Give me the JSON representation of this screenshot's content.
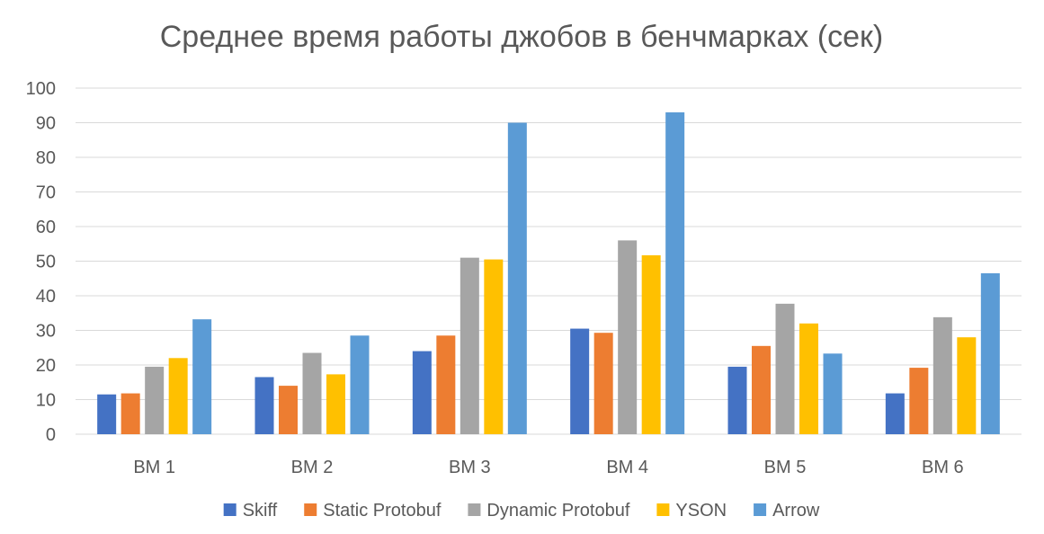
{
  "chart_data": {
    "type": "bar",
    "title": "Среднее время работы джобов в бенчмарках (сек)",
    "xlabel": "",
    "ylabel": "",
    "categories": [
      "BM 1",
      "BM 2",
      "BM 3",
      "BM 4",
      "BM 5",
      "BM 6"
    ],
    "ylim": [
      0,
      100
    ],
    "yticks": [
      0,
      10,
      20,
      30,
      40,
      50,
      60,
      70,
      80,
      90,
      100
    ],
    "grid": true,
    "legend_position": "bottom",
    "series": [
      {
        "name": "Skiff",
        "color": "#4472c4",
        "values": [
          11.5,
          16.5,
          24,
          30.5,
          19.5,
          11.8
        ]
      },
      {
        "name": "Static Protobuf",
        "color": "#ed7d31",
        "values": [
          11.8,
          14,
          28.5,
          29.3,
          25.5,
          19.2
        ]
      },
      {
        "name": "Dynamic Protobuf",
        "color": "#a5a5a5",
        "values": [
          19.5,
          23.5,
          51,
          56,
          37.7,
          33.8
        ]
      },
      {
        "name": "YSON",
        "color": "#ffc000",
        "values": [
          22,
          17.3,
          50.5,
          51.7,
          32,
          28
        ]
      },
      {
        "name": "Arrow",
        "color": "#5b9bd5",
        "values": [
          33.2,
          28.5,
          90,
          93,
          23.3,
          46.5
        ]
      }
    ]
  }
}
